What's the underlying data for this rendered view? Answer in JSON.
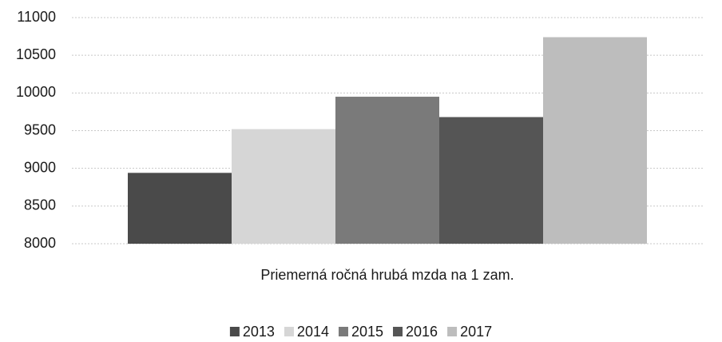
{
  "chart_data": {
    "type": "bar",
    "categories": [
      "Priemerná ročná hrubá mzda na 1 zam."
    ],
    "series": [
      {
        "name": "2013",
        "color": "#4a4a4a",
        "values": [
          8940
        ]
      },
      {
        "name": "2014",
        "color": "#d6d6d6",
        "values": [
          9520
        ]
      },
      {
        "name": "2015",
        "color": "#7a7a7a",
        "values": [
          9950
        ]
      },
      {
        "name": "2016",
        "color": "#555555",
        "values": [
          9680
        ]
      },
      {
        "name": "2017",
        "color": "#bdbdbd",
        "values": [
          10740
        ]
      }
    ],
    "ylim": [
      8000,
      11000
    ],
    "yticks": [
      8000,
      8500,
      9000,
      9500,
      10000,
      10500,
      11000
    ],
    "grid": true,
    "legend": "bottom"
  }
}
